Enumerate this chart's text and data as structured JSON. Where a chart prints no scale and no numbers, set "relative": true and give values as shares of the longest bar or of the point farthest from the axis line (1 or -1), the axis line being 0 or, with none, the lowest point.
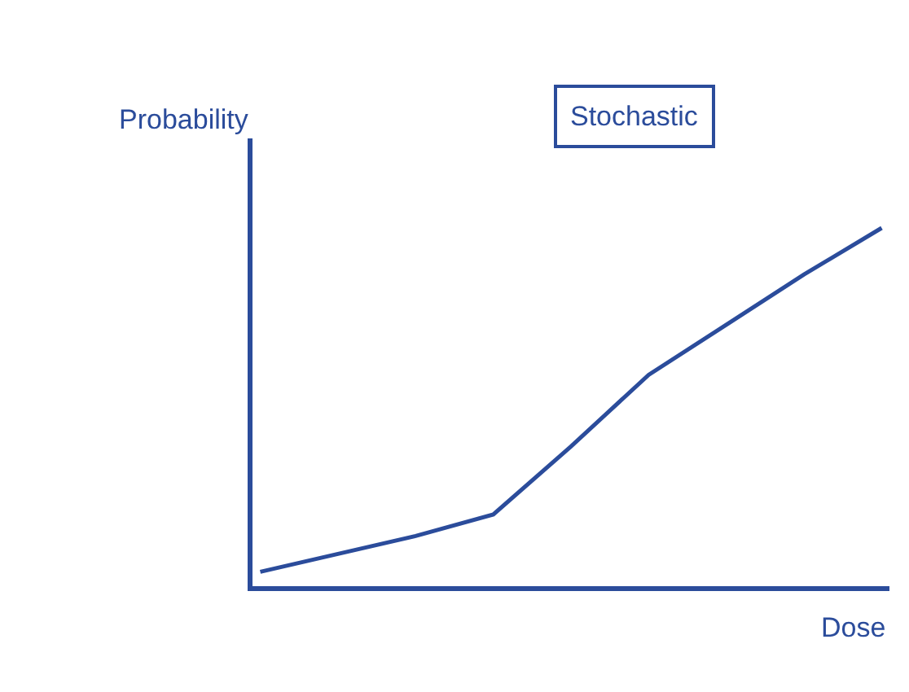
{
  "chart_data": {
    "type": "line",
    "relative": true,
    "categories": [
      null,
      null,
      null,
      null,
      null,
      null,
      null,
      null,
      null
    ],
    "series": [
      {
        "color": "#2b4c9b",
        "values": [
          0.04,
          0.09,
          0.14,
          0.2,
          0.39,
          0.59,
          0.73,
          0.87,
          1.0
        ]
      }
    ],
    "xlabel": "Dose",
    "ylabel": "Probability",
    "annotations": [
      "Stochastic"
    ],
    "marker": "none",
    "line_style": "solid"
  }
}
